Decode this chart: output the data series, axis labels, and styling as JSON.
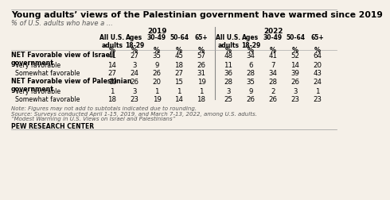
{
  "title": "Young adults’ views of the Palestinian government have warmed since 2019",
  "subtitle": "% of U.S. adults who have a ...",
  "col_headers": [
    "All U.S.\nadults",
    "Ages\n18-29",
    "30-49",
    "50-64",
    "65+",
    "All U.S.\nadults",
    "Ages\n18-29",
    "30-49",
    "50-64",
    "65+"
  ],
  "row_labels": [
    "NET Favorable view of Israeli\ngovernment",
    "Very favorable",
    "Somewhat favorable",
    "NET Favorable view of Palestinian\ngovernment",
    "Very favorable",
    "Somewhat favorable"
  ],
  "row_label_bold": [
    true,
    false,
    false,
    true,
    false,
    false
  ],
  "data": [
    [
      41,
      27,
      35,
      45,
      57,
      48,
      34,
      41,
      52,
      64
    ],
    [
      14,
      3,
      9,
      18,
      26,
      11,
      6,
      7,
      14,
      20
    ],
    [
      27,
      24,
      26,
      27,
      31,
      36,
      28,
      34,
      39,
      43
    ],
    [
      19,
      26,
      20,
      15,
      19,
      28,
      35,
      28,
      26,
      24
    ],
    [
      1,
      3,
      1,
      1,
      1,
      3,
      9,
      2,
      3,
      1
    ],
    [
      18,
      23,
      19,
      14,
      18,
      25,
      26,
      26,
      23,
      23
    ]
  ],
  "footer_lines": [
    "Note: Figures may not add to subtotals indicated due to rounding.",
    "Source: Surveys conducted April 1-15, 2019, and March 7-13, 2022, among U.S. adults.",
    "“Modest Warming in U.S. Views on Israel and Palestinians”"
  ],
  "footer_bold": "PEW RESEARCH CENTER",
  "bg_color": "#f5f0e8",
  "title_fontsize": 7.8,
  "subtitle_fontsize": 6.0,
  "header_fontsize": 5.8,
  "data_fontsize": 6.5,
  "footer_fontsize": 5.0
}
